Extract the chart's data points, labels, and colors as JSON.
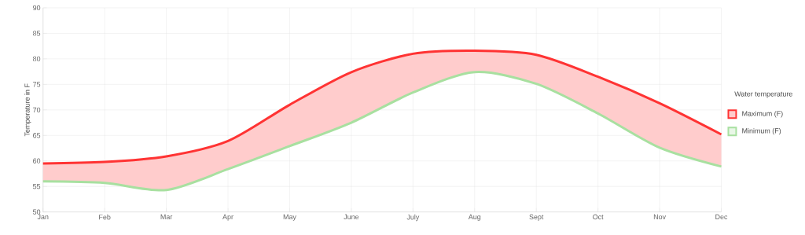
{
  "chart_data": {
    "type": "line",
    "ylabel": "Temperature in F",
    "legend_title": "Water temperature",
    "legend": "right",
    "grid": true,
    "marker": "none",
    "line_style": "solid",
    "categories": [
      "Jan",
      "Feb",
      "Mar",
      "Apr",
      "May",
      "June",
      "July",
      "Aug",
      "Sept",
      "Oct",
      "Nov",
      "Dec"
    ],
    "ylim": [
      50,
      90
    ],
    "yticks": [
      50,
      55,
      60,
      65,
      70,
      75,
      80,
      85,
      90
    ],
    "series": [
      {
        "name": "Maximum (F)",
        "color": "#ff3333",
        "values": [
          59.5,
          59.8,
          60.9,
          63.9,
          71,
          77.4,
          81,
          81.6,
          80.8,
          76.5,
          71.3,
          65.2
        ],
        "lower": [
          56,
          55.7,
          54.3,
          58.4,
          62.9,
          67.5,
          73.4,
          77.4,
          75.1,
          69.3,
          62.6,
          58.9
        ],
        "upper": [
          59.5,
          59.8,
          60.9,
          63.9,
          71,
          77.4,
          81,
          81.6,
          80.8,
          76.5,
          71.3,
          65.2
        ]
      },
      {
        "name": "Minimum (F)",
        "color": "#a8e0a0",
        "values": [
          56,
          55.7,
          54.3,
          58.4,
          62.9,
          67.5,
          73.4,
          77.4,
          75.1,
          69.3,
          62.6,
          58.9
        ]
      }
    ]
  }
}
